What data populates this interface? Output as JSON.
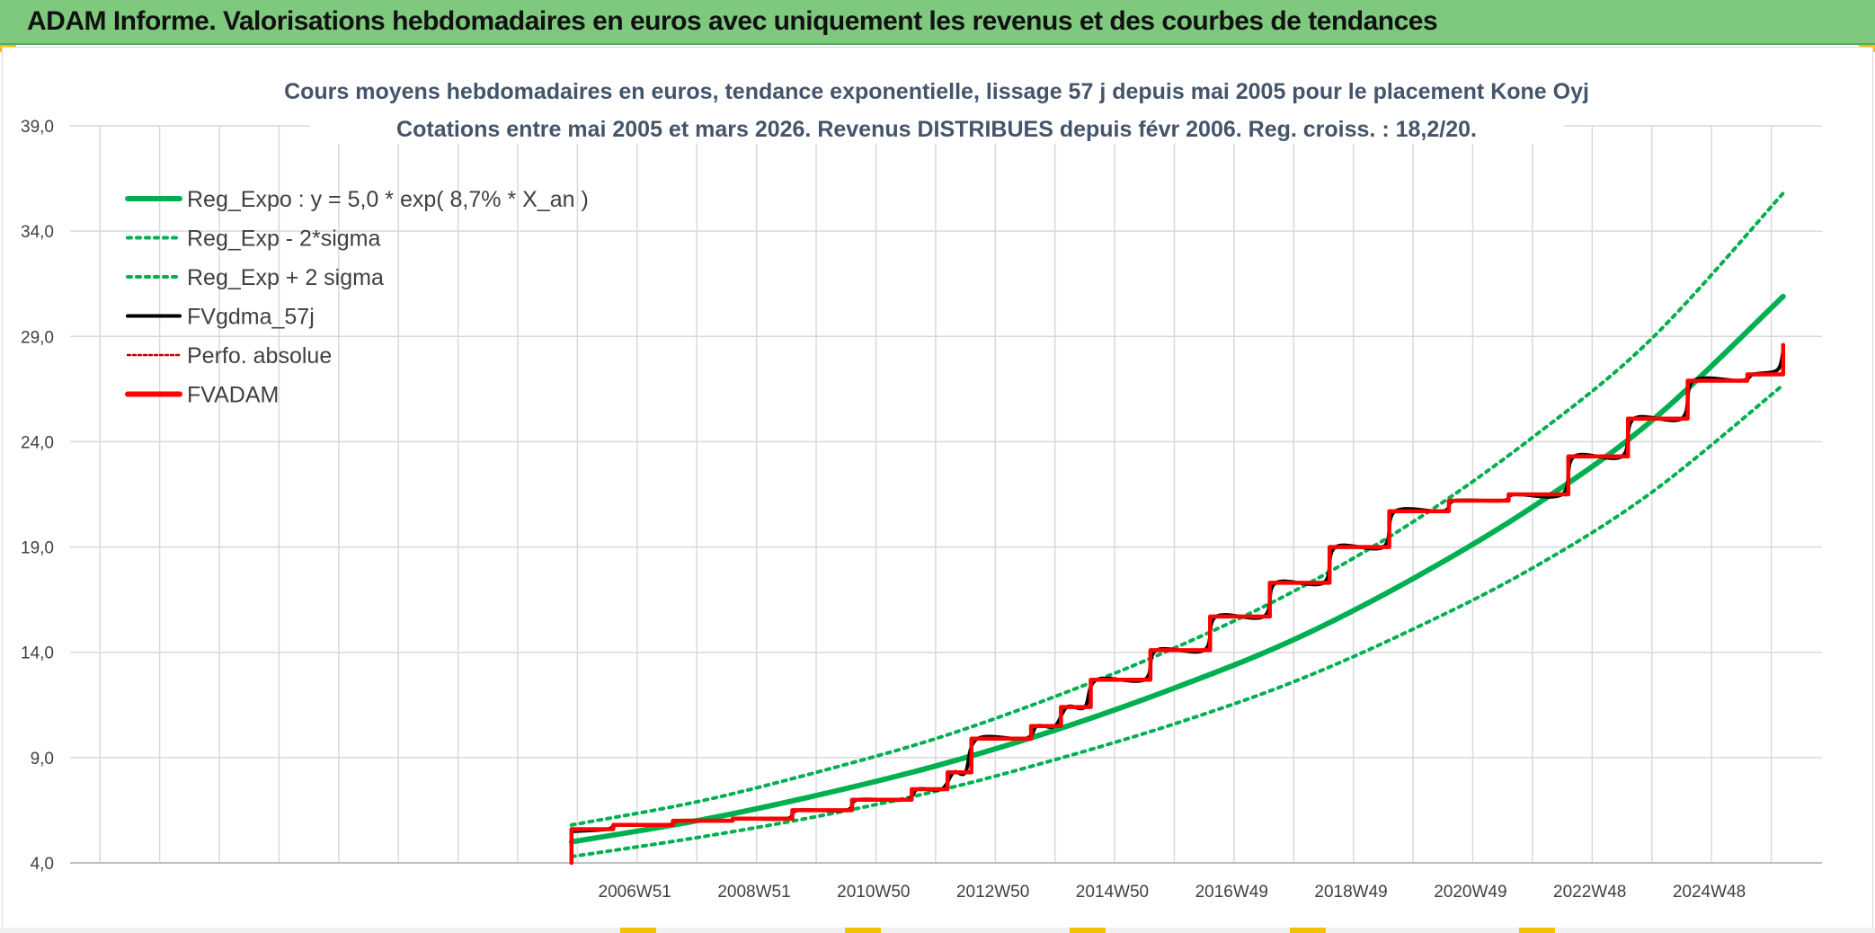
{
  "header": {
    "title": "ADAM Informe. Valorisations hebdomadaires en euros avec uniquement les revenus et des courbes de tendances"
  },
  "colors": {
    "header_bg": "#7fc97f",
    "reg_expo": "#00b050",
    "fvgdma": "#000000",
    "perfo": "#c00000",
    "fvadam": "#ff0000",
    "grid": "#d9d9d9",
    "axis_text": "#404040",
    "title_text": "#44546a"
  },
  "chart_data": {
    "type": "line",
    "title_line1": "Cours moyens hebdomadaires en euros, tendance exponentielle, lissage 57 j depuis mai 2005 pour le placement Kone Oyj",
    "title_line2": "Cotations entre mai 2005 et mars 2026. Revenus DISTRIBUES depuis févr 2006. Reg. croiss. : 18,2/20.",
    "y_ticks": [
      "4,0",
      "9,0",
      "14,0",
      "19,0",
      "24,0",
      "29,0",
      "34,0",
      "39,0"
    ],
    "ylim": [
      4,
      39
    ],
    "x_ticks": [
      "2006W51",
      "2008W51",
      "2010W50",
      "2012W50",
      "2014W50",
      "2016W49",
      "2018W49",
      "2020W49",
      "2022W48",
      "2024W48"
    ],
    "x_tick_years": [
      2006.96,
      2008.96,
      2010.96,
      2012.96,
      2014.96,
      2016.96,
      2018.96,
      2020.96,
      2022.96,
      2024.96
    ],
    "xlim": [
      1997.5,
      2026.85
    ],
    "legend_position": "top-left",
    "legend": [
      {
        "label": "Reg_Expo : y = 5,0 * exp( 8,7% *  X_an )",
        "style": "solid-thick",
        "color": "#00b050"
      },
      {
        "label": "Reg_Exp - 2*sigma",
        "style": "dotted",
        "color": "#00b050"
      },
      {
        "label": "Reg_Exp + 2 sigma",
        "style": "dotted",
        "color": "#00b050"
      },
      {
        "label": "FVgdma_57j",
        "style": "solid",
        "color": "#000000"
      },
      {
        "label": "Perfo. absolue",
        "style": "dotted-thin",
        "color": "#c00000"
      },
      {
        "label": "FVADAM",
        "style": "solid-thick",
        "color": "#ff0000"
      }
    ],
    "series": [
      {
        "name": "Reg_Expo : y = 5,0 * exp( 8,7% *  X_an )",
        "x": [
          2005.9,
          2008.0,
          2010.0,
          2012.0,
          2014.0,
          2016.0,
          2018.0,
          2020.0,
          2022.0,
          2024.0,
          2026.2
        ],
        "values": [
          5.0,
          6.0,
          7.2,
          8.6,
          10.3,
          12.3,
          14.6,
          17.5,
          20.9,
          25.0,
          30.9
        ]
      },
      {
        "name": "Reg_Exp - 2*sigma",
        "x": [
          2005.9,
          2008.0,
          2010.0,
          2012.0,
          2014.0,
          2016.0,
          2018.0,
          2020.0,
          2022.0,
          2024.0,
          2026.2
        ],
        "values": [
          4.3,
          5.2,
          6.2,
          7.4,
          8.9,
          10.6,
          12.6,
          15.1,
          18.0,
          21.6,
          26.7
        ]
      },
      {
        "name": "Reg_Exp + 2 sigma",
        "x": [
          2005.9,
          2008.0,
          2010.0,
          2012.0,
          2014.0,
          2016.0,
          2018.0,
          2020.0,
          2022.0,
          2024.0,
          2026.2
        ],
        "values": [
          5.8,
          6.9,
          8.3,
          9.9,
          11.9,
          14.2,
          16.9,
          20.2,
          24.2,
          28.9,
          35.8
        ]
      },
      {
        "name": "FVADAM",
        "x": [
          2005.9,
          2005.9,
          2006.6,
          2006.6,
          2007.6,
          2007.6,
          2008.6,
          2008.6,
          2009.6,
          2009.6,
          2010.6,
          2010.6,
          2011.6,
          2011.6,
          2012.2,
          2012.2,
          2012.6,
          2012.6,
          2013.6,
          2013.6,
          2014.1,
          2014.1,
          2014.6,
          2014.6,
          2015.6,
          2015.6,
          2016.6,
          2016.6,
          2017.6,
          2017.6,
          2018.6,
          2018.6,
          2019.6,
          2019.6,
          2020.6,
          2020.6,
          2021.6,
          2021.6,
          2022.6,
          2022.6,
          2023.6,
          2023.6,
          2024.6,
          2024.6,
          2025.6,
          2025.6,
          2026.2,
          2026.2
        ],
        "values": [
          4.0,
          5.6,
          5.6,
          5.8,
          5.8,
          6.0,
          6.0,
          6.1,
          6.1,
          6.5,
          6.5,
          7.0,
          7.0,
          7.5,
          7.5,
          8.3,
          8.3,
          9.9,
          9.9,
          10.5,
          10.5,
          11.4,
          11.4,
          12.7,
          12.7,
          14.1,
          14.1,
          15.7,
          15.7,
          17.3,
          17.3,
          19.0,
          19.0,
          20.7,
          20.7,
          21.2,
          21.2,
          21.5,
          21.5,
          23.3,
          23.3,
          25.1,
          25.1,
          26.9,
          26.9,
          27.2,
          27.2,
          28.6
        ]
      },
      {
        "name": "FVgdma_57j",
        "x": [
          2005.9,
          2006.5,
          2006.7,
          2007.5,
          2007.7,
          2008.5,
          2008.7,
          2009.5,
          2009.7,
          2010.5,
          2010.7,
          2011.5,
          2011.7,
          2012.1,
          2012.3,
          2012.5,
          2012.7,
          2013.5,
          2013.7,
          2014.0,
          2014.2,
          2014.5,
          2014.7,
          2015.5,
          2015.7,
          2016.5,
          2016.7,
          2017.5,
          2017.7,
          2018.5,
          2018.7,
          2019.5,
          2019.7,
          2020.5,
          2020.7,
          2021.5,
          2021.7,
          2022.5,
          2022.7,
          2023.5,
          2023.7,
          2024.5,
          2024.7,
          2025.5,
          2025.7,
          2026.1,
          2026.2
        ],
        "values": [
          5.5,
          5.6,
          5.8,
          5.8,
          6.0,
          6.0,
          6.1,
          6.1,
          6.5,
          6.5,
          7.0,
          7.0,
          7.5,
          7.5,
          8.3,
          8.3,
          9.9,
          9.9,
          10.5,
          10.5,
          11.4,
          11.4,
          12.7,
          12.7,
          14.1,
          14.1,
          15.7,
          15.7,
          17.3,
          17.3,
          19.0,
          19.0,
          20.7,
          20.7,
          21.2,
          21.2,
          21.5,
          21.5,
          23.3,
          23.3,
          25.1,
          25.1,
          26.9,
          26.9,
          27.2,
          27.4,
          28.3
        ]
      }
    ]
  }
}
